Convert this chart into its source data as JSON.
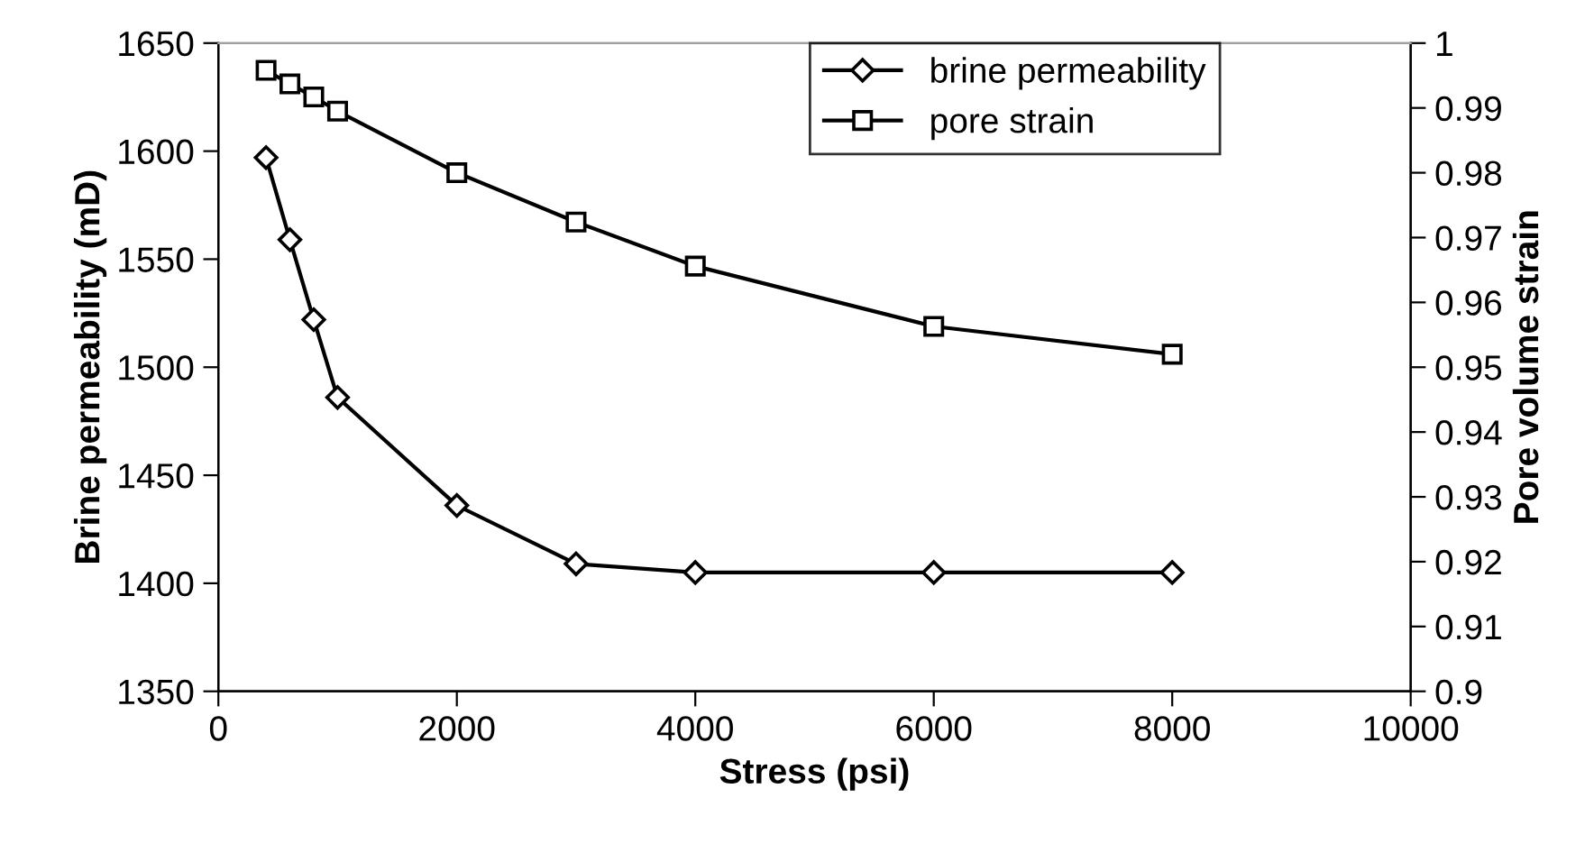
{
  "chart_data": {
    "type": "line",
    "xlabel": "Stress (psi)",
    "ylabel": "Brine permeability (mD)",
    "y2label": "Pore volume strain",
    "x": [
      400,
      600,
      800,
      1000,
      2000,
      3000,
      4000,
      6000,
      8000
    ],
    "series": [
      {
        "name": "brine permeability",
        "color": "#000000",
        "marker": "diamond",
        "values": [
          1597,
          1559,
          1522,
          1486,
          1436,
          1409,
          1405,
          1405,
          1405
        ]
      },
      {
        "name": "pore strain",
        "color": "#000000",
        "marker": "square",
        "axis": "y2",
        "values": [
          0.9958,
          0.9937,
          0.9917,
          0.9895,
          0.98,
          0.9724,
          0.9656,
          0.9563,
          0.952
        ]
      }
    ],
    "xlim": [
      0,
      10000
    ],
    "xticks": [
      0,
      2000,
      4000,
      6000,
      8000,
      10000
    ],
    "ylim": [
      1350,
      1650
    ],
    "yticks": [
      1350,
      1400,
      1450,
      1500,
      1550,
      1600,
      1650
    ],
    "y2lim": [
      0.9,
      1
    ],
    "y2ticks": [
      0.9,
      0.91,
      0.92,
      0.93,
      0.94,
      0.95,
      0.96,
      0.97,
      0.98,
      0.99,
      {
        "value": 1,
        "label": "1"
      }
    ],
    "grid": false,
    "legend": "top right",
    "line_style": "solid"
  }
}
